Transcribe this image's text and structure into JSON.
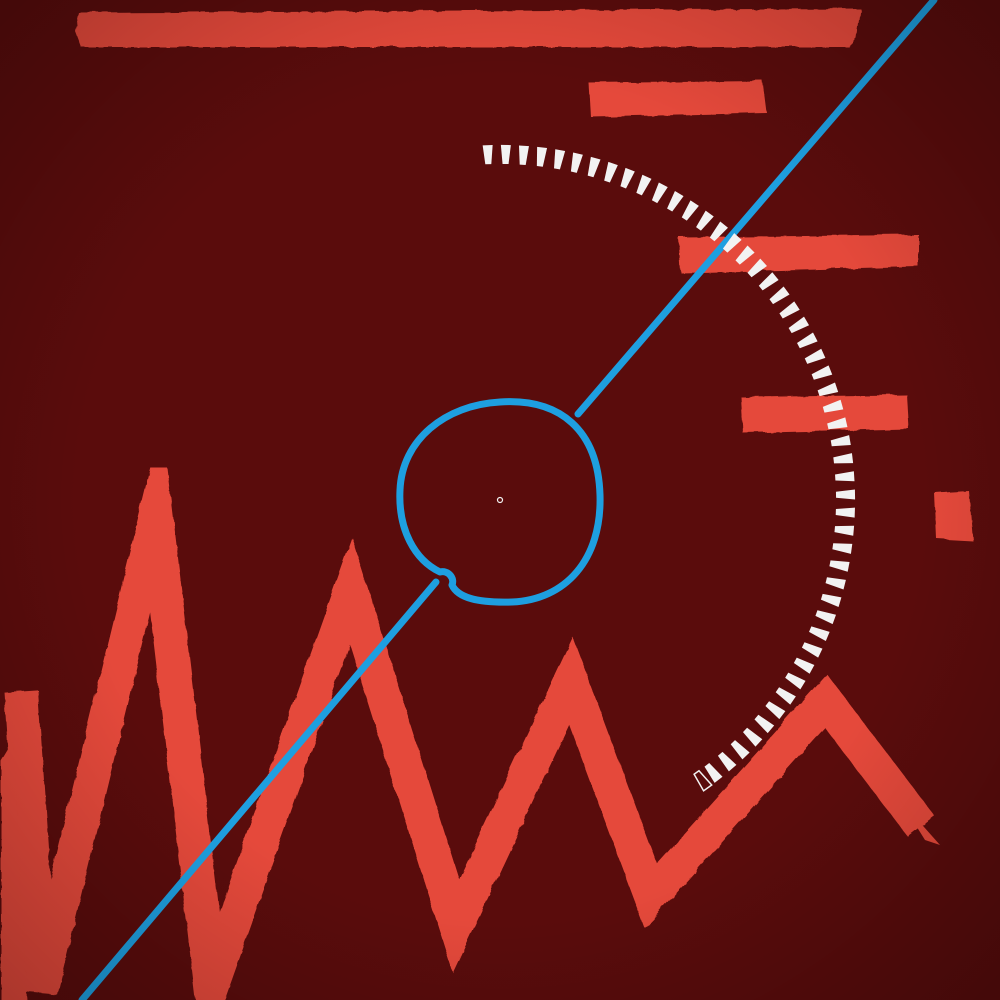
{
  "palette": {
    "background": "#5a0c0c",
    "background_dark": "#3e0606",
    "red_strokes": "#e5493a",
    "blue_line": "#1e9fe0",
    "white_dashes": "#f2f2f2"
  },
  "elements": {
    "bars": "horizontal-brush-bars",
    "zigzag": "zigzag-brush-stroke",
    "diagonal": "diagonal-blue-line",
    "circle": "blue-hand-drawn-circle",
    "arc": "white-dash-arc",
    "center": "center-dot"
  }
}
